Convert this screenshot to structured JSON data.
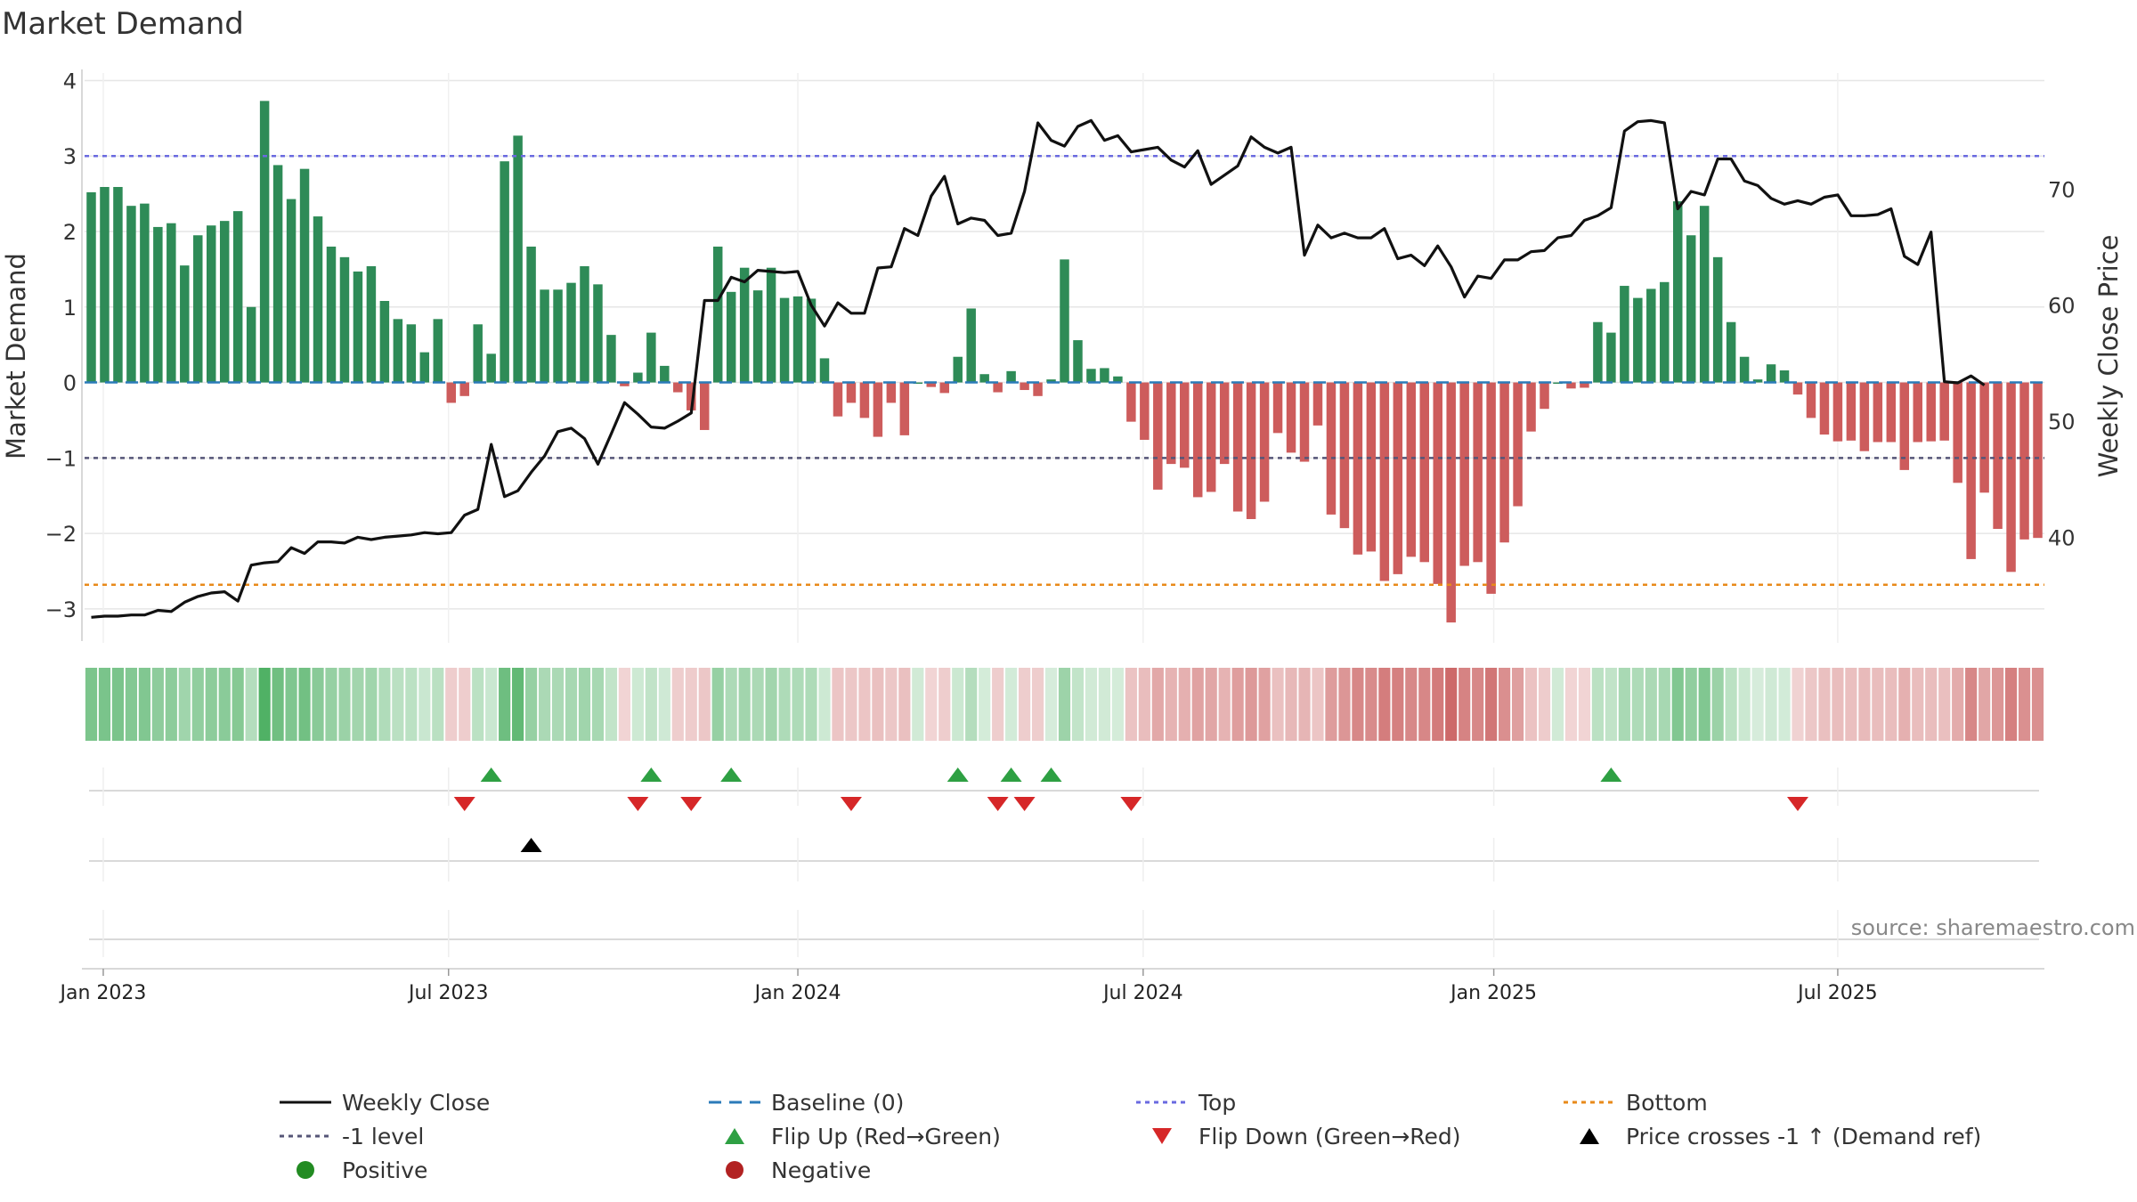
{
  "chart_data": {
    "type": "bar",
    "title": "Market Demand",
    "ylabel": "Market Demand",
    "y2label": "Weekly Close Price",
    "ylim": [
      -3.45,
      4.1
    ],
    "y2lim": [
      30.9,
      80.0
    ],
    "yticks": [
      4,
      3,
      2,
      1,
      0,
      -1,
      -2,
      -3
    ],
    "ytick_labels": [
      "4",
      "3",
      "2",
      "1",
      "0",
      "−1",
      "−2",
      "−3"
    ],
    "y2ticks": [
      70,
      60,
      50,
      40
    ],
    "y2tick_labels": [
      "70",
      "60",
      "50",
      "40"
    ],
    "xticks": [
      {
        "label": "Jan 2023",
        "week": 0.9
      },
      {
        "label": "Jul 2023",
        "week": 26.8
      },
      {
        "label": "Jan 2024",
        "week": 53.0
      },
      {
        "label": "Jul 2024",
        "week": 78.9
      },
      {
        "label": "Jan 2025",
        "week": 105.2
      },
      {
        "label": "Jul 2025",
        "week": 131.0
      }
    ],
    "reference_lines": {
      "baseline": 0,
      "top": 3.0,
      "minus_one": -1.0,
      "bottom": -2.68
    },
    "demand": [
      2.52,
      2.59,
      2.59,
      2.34,
      2.37,
      2.06,
      2.11,
      1.55,
      1.95,
      2.08,
      2.14,
      2.27,
      1.0,
      3.73,
      2.88,
      2.43,
      2.83,
      2.2,
      1.8,
      1.66,
      1.47,
      1.54,
      1.08,
      0.84,
      0.77,
      0.4,
      0.84,
      -0.27,
      -0.18,
      0.77,
      0.38,
      2.93,
      3.27,
      1.8,
      1.23,
      1.23,
      1.32,
      1.54,
      1.3,
      0.63,
      -0.05,
      0.13,
      0.66,
      0.22,
      -0.13,
      -0.37,
      -0.63,
      1.8,
      1.2,
      1.52,
      1.22,
      1.52,
      1.12,
      1.14,
      1.11,
      0.32,
      -0.45,
      -0.27,
      -0.47,
      -0.72,
      -0.27,
      -0.7,
      0.0,
      -0.06,
      -0.14,
      0.34,
      0.98,
      0.11,
      -0.13,
      0.15,
      -0.1,
      -0.18,
      0.04,
      1.63,
      0.56,
      0.18,
      0.19,
      0.08,
      -0.52,
      -0.76,
      -1.42,
      -1.08,
      -1.13,
      -1.52,
      -1.45,
      -1.08,
      -1.71,
      -1.81,
      -1.58,
      -0.67,
      -0.93,
      -1.05,
      -0.57,
      -1.75,
      -1.93,
      -2.28,
      -2.24,
      -2.63,
      -2.54,
      -2.31,
      -2.38,
      -2.67,
      -3.18,
      -2.43,
      -2.38,
      -2.8,
      -2.12,
      -1.64,
      -0.65,
      -0.35,
      0.0,
      -0.08,
      -0.07,
      0.8,
      0.66,
      1.28,
      1.12,
      1.24,
      1.33,
      2.4,
      1.95,
      2.34,
      1.66,
      0.8,
      0.34,
      0.04,
      0.24,
      0.16,
      -0.16,
      -0.47,
      -0.69,
      -0.78,
      -0.77,
      -0.91,
      -0.79,
      -0.79,
      -1.16,
      -0.79,
      -0.78,
      -0.77,
      -1.33,
      -2.34,
      -1.46,
      -1.94,
      -2.51,
      -2.08,
      -2.06
    ],
    "close": [
      33.1,
      33.2,
      33.2,
      33.3,
      33.3,
      33.7,
      33.6,
      34.4,
      34.9,
      35.2,
      35.3,
      34.5,
      37.6,
      37.8,
      37.9,
      39.1,
      38.6,
      39.6,
      39.6,
      39.5,
      40.0,
      39.8,
      40.0,
      40.1,
      40.2,
      40.4,
      40.3,
      40.4,
      41.9,
      42.4,
      48.0,
      43.5,
      44.0,
      45.6,
      47.0,
      49.1,
      49.4,
      48.5,
      46.3,
      48.9,
      51.6,
      50.6,
      49.5,
      49.4,
      50.0,
      50.7,
      60.4,
      60.4,
      62.4,
      62.0,
      63.0,
      62.9,
      62.8,
      62.9,
      60.0,
      58.2,
      60.2,
      59.3,
      59.3,
      63.2,
      63.3,
      66.6,
      66.0,
      69.4,
      71.1,
      67.0,
      67.5,
      67.3,
      66.0,
      66.2,
      69.8,
      75.7,
      74.2,
      73.7,
      75.4,
      75.9,
      74.2,
      74.6,
      73.2,
      73.4,
      73.6,
      72.5,
      71.9,
      73.3,
      70.4,
      71.2,
      72.0,
      74.5,
      73.6,
      73.1,
      73.6,
      64.3,
      66.9,
      65.8,
      66.2,
      65.8,
      65.8,
      66.6,
      64.0,
      64.3,
      63.4,
      65.1,
      63.3,
      60.7,
      62.5,
      62.3,
      63.9,
      63.9,
      64.6,
      64.7,
      65.8,
      66.0,
      67.3,
      67.7,
      68.4,
      75.0,
      75.8,
      75.9,
      75.7,
      68.3,
      69.8,
      69.5,
      72.6,
      72.6,
      70.7,
      70.3,
      69.2,
      68.7,
      69.0,
      68.7,
      69.3,
      69.5,
      67.7,
      67.7,
      67.8,
      68.3,
      64.2,
      63.5,
      66.3,
      53.4,
      53.3,
      53.9,
      53.1
    ],
    "heat_intensity": [
      0.66,
      0.67,
      0.67,
      0.6,
      0.61,
      0.53,
      0.54,
      0.4,
      0.5,
      0.54,
      0.55,
      0.59,
      0.26,
      0.97,
      0.75,
      0.63,
      0.73,
      0.57,
      0.47,
      0.43,
      0.38,
      0.4,
      0.28,
      0.22,
      0.2,
      0.1,
      0.22,
      0.1,
      0.1,
      0.2,
      0.1,
      0.76,
      0.85,
      0.47,
      0.32,
      0.32,
      0.34,
      0.4,
      0.34,
      0.16,
      0.05,
      0.08,
      0.17,
      0.06,
      0.1,
      0.12,
      0.16,
      0.47,
      0.31,
      0.39,
      0.32,
      0.39,
      0.29,
      0.3,
      0.29,
      0.08,
      0.17,
      0.15,
      0.17,
      0.2,
      0.15,
      0.2,
      0.05,
      0.05,
      0.1,
      0.09,
      0.25,
      0.03,
      0.1,
      0.04,
      0.1,
      0.1,
      0.01,
      0.42,
      0.15,
      0.05,
      0.05,
      0.02,
      0.18,
      0.23,
      0.4,
      0.31,
      0.33,
      0.43,
      0.41,
      0.31,
      0.48,
      0.51,
      0.45,
      0.2,
      0.27,
      0.3,
      0.17,
      0.49,
      0.54,
      0.64,
      0.62,
      0.73,
      0.71,
      0.64,
      0.66,
      0.75,
      0.89,
      0.68,
      0.66,
      0.78,
      0.59,
      0.46,
      0.19,
      0.12,
      0.05,
      0.05,
      0.05,
      0.21,
      0.17,
      0.33,
      0.29,
      0.32,
      0.35,
      0.62,
      0.5,
      0.61,
      0.43,
      0.21,
      0.09,
      0.01,
      0.06,
      0.04,
      0.07,
      0.15,
      0.2,
      0.23,
      0.22,
      0.26,
      0.23,
      0.23,
      0.33,
      0.23,
      0.23,
      0.22,
      0.37,
      0.65,
      0.41,
      0.54,
      0.7,
      0.58,
      0.58
    ],
    "flip_up_weeks": [
      30,
      42,
      48,
      65,
      69,
      72,
      114
    ],
    "flip_down_weeks": [
      28,
      41,
      45,
      57,
      68,
      70,
      78,
      128
    ],
    "price_cross_weeks": [
      33
    ],
    "source": "source: sharemaestro.com",
    "legend": [
      {
        "label": "Weekly Close",
        "marker": "line-solid",
        "color": "#111111"
      },
      {
        "label": "Baseline (0)",
        "marker": "line-dash",
        "color": "#2b7bb9"
      },
      {
        "label": "Top",
        "marker": "line-dot",
        "color": "#6a6ae0"
      },
      {
        "label": "Bottom",
        "marker": "line-dot",
        "color": "#e88a1a"
      },
      {
        "label": "-1 level",
        "marker": "line-dot",
        "color": "#555577"
      },
      {
        "label": "Flip Up (Red→Green)",
        "marker": "triangle-up",
        "color": "#2ea043"
      },
      {
        "label": "Flip Down (Green→Red)",
        "marker": "triangle-down",
        "color": "#d62728"
      },
      {
        "label": "Price crosses -1 ↑ (Demand ref)",
        "marker": "triangle-up",
        "color": "#000000"
      },
      {
        "label": "Positive",
        "marker": "circle",
        "color": "#228b22"
      },
      {
        "label": "Negative",
        "marker": "circle",
        "color": "#b22222"
      }
    ],
    "colors": {
      "positive_bar": "#2e8b57",
      "negative_bar": "#cd5c5c",
      "close_line": "#111111",
      "baseline": "#2b7bb9",
      "top": "#6a6ae0",
      "bottom": "#e88a1a",
      "minus_one": "#555577",
      "heat_positive": "#4caf62",
      "heat_negative": "#c85a5a",
      "flip_up": "#2ea043",
      "flip_down": "#d62728",
      "price_cross": "#000000",
      "grid": "#e6e6e6"
    }
  }
}
